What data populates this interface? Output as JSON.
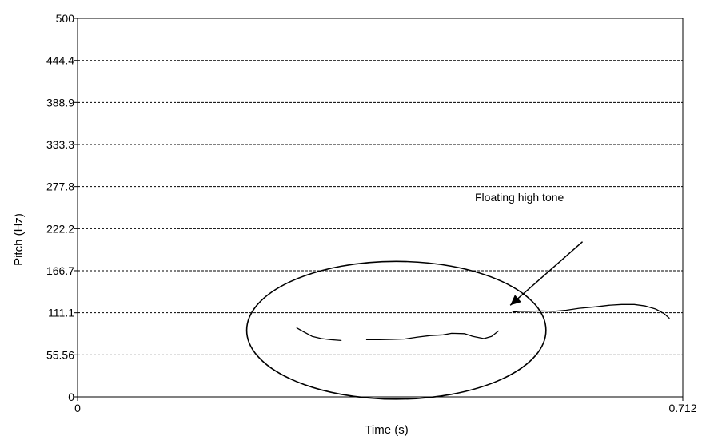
{
  "chart_data": {
    "type": "line",
    "xlabel": "Time (s)",
    "ylabel": "Pitch (Hz)",
    "xlim": [
      0,
      0.712
    ],
    "ylim": [
      0,
      500
    ],
    "x_ticks": [
      "0",
      "0.712"
    ],
    "y_ticks": [
      {
        "value": 0,
        "label": "0"
      },
      {
        "value": 55.56,
        "label": "55.56"
      },
      {
        "value": 111.1,
        "label": "111.1"
      },
      {
        "value": 166.7,
        "label": "166.7"
      },
      {
        "value": 222.2,
        "label": "222.2"
      },
      {
        "value": 277.8,
        "label": "277.8"
      },
      {
        "value": 333.3,
        "label": "333.3"
      },
      {
        "value": 388.9,
        "label": "388.9"
      },
      {
        "value": 444.4,
        "label": "444.4"
      },
      {
        "value": 500,
        "label": "500"
      }
    ],
    "grid": "horizontal-dashed",
    "series": [
      {
        "points": [
          [
            0.258,
            91
          ],
          [
            0.266,
            86
          ],
          [
            0.276,
            80
          ],
          [
            0.287,
            77
          ],
          [
            0.298,
            75.5
          ],
          [
            0.31,
            74.5
          ]
        ]
      },
      {
        "points": [
          [
            0.34,
            75.5
          ],
          [
            0.355,
            75.5
          ],
          [
            0.37,
            76
          ],
          [
            0.385,
            76.5
          ],
          [
            0.4,
            79
          ],
          [
            0.415,
            81
          ],
          [
            0.43,
            82
          ],
          [
            0.44,
            84
          ],
          [
            0.455,
            83.5
          ],
          [
            0.465,
            80
          ],
          [
            0.478,
            77
          ],
          [
            0.487,
            80
          ],
          [
            0.495,
            87
          ]
        ]
      },
      {
        "points": [
          [
            0.512,
            112
          ],
          [
            0.52,
            113
          ],
          [
            0.53,
            113
          ],
          [
            0.545,
            113.5
          ],
          [
            0.56,
            113
          ],
          [
            0.575,
            114.5
          ],
          [
            0.59,
            117
          ],
          [
            0.61,
            119
          ],
          [
            0.625,
            121
          ],
          [
            0.64,
            122
          ],
          [
            0.655,
            122
          ],
          [
            0.668,
            120
          ],
          [
            0.68,
            116
          ],
          [
            0.69,
            110
          ],
          [
            0.696,
            104
          ]
        ]
      }
    ],
    "annotations": {
      "label": "Floating high tone",
      "arrow": {
        "from": [
          0.594,
          205
        ],
        "to": [
          0.509,
          121
        ]
      },
      "ellipse": {
        "cx": 0.375,
        "cy": 88,
        "rx_time": 0.176,
        "ry_hz": 91
      }
    }
  }
}
